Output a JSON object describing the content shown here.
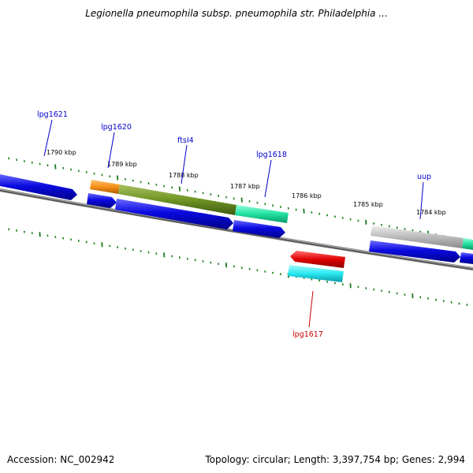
{
  "title": "Legionella pneumophila subsp. pneumophila str. Philadelphia ...",
  "footer": {
    "accession": "Accession: NC_002942",
    "stats": "Topology: circular; Length: 3,397,754 bp; Genes: 2,994"
  },
  "ticks": [
    "1790 kbp",
    "1789 kbp",
    "1788 kbp",
    "1787 kbp",
    "1786 kbp",
    "1785 kbp",
    "1784 kbp"
  ],
  "gene_labels": {
    "lpg1621": "lpg1621",
    "lpg1620": "lpg1620",
    "ftsI4": "ftsI4",
    "lpg1618": "lpg1618",
    "uup": "uup",
    "lpg1617": "lpg1617"
  },
  "colors": {
    "label_blue": "#0000cc",
    "label_red": "#cc0000",
    "tick_green": "#1a7a1a",
    "backbone": "#777777",
    "cds_blue": "#0a0ae0",
    "orange": "#f59018",
    "olive": "#6e9424",
    "teal": "#22e0a0",
    "red": "#e00000",
    "cyan": "#28e8f0",
    "gray": "#bbbbbb"
  }
}
